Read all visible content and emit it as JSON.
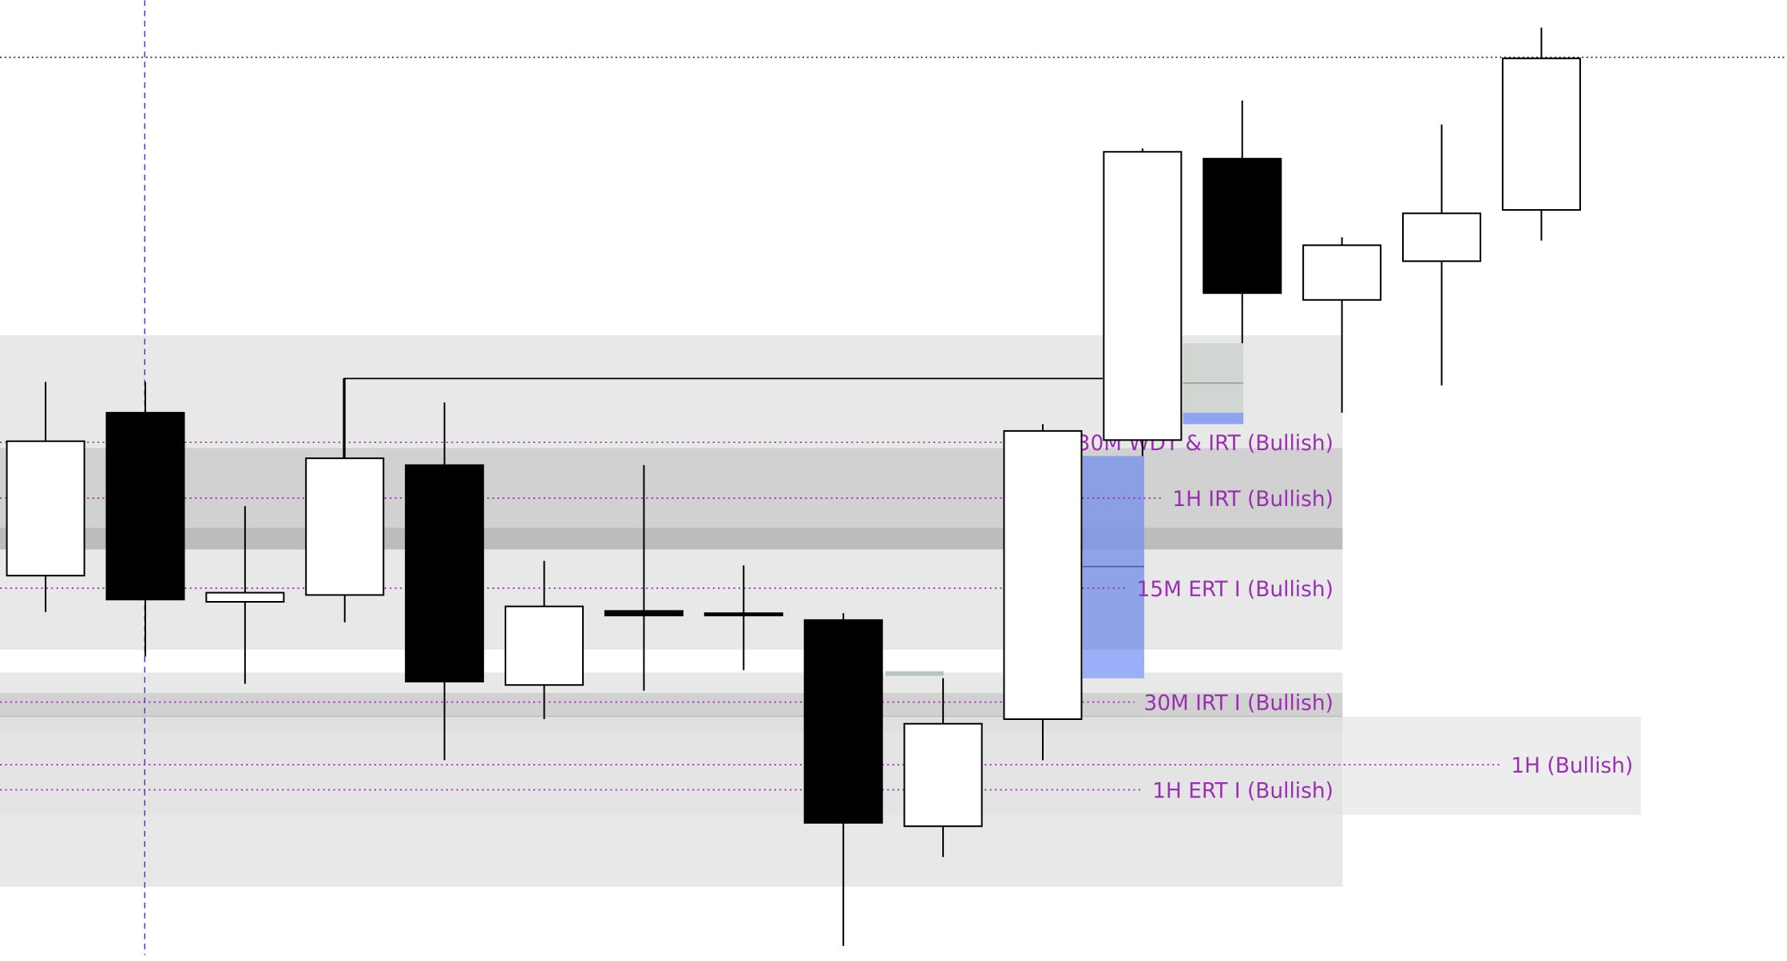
{
  "chart_data": {
    "type": "candlestick",
    "title": "",
    "xlabel": "",
    "ylabel": "",
    "price_units": "relative (no axis printed)",
    "ylim": [
      0,
      843
    ],
    "grid": false,
    "colors": {
      "bullish_body": "#ffffff",
      "bearish_body": "#000000",
      "outline": "#000000",
      "zone_light": "#e8e8e8",
      "zone_mid": "#d1d1d1",
      "zone_dark": "#bcbcbc",
      "fvg_blue": "#7f98e8",
      "label": "#9a2fb0",
      "crosshair": "#3b3bb0"
    },
    "candles": [
      {
        "open": 338,
        "high": 508,
        "low": 306,
        "close": 456
      },
      {
        "open": 481,
        "high": 508,
        "low": 267,
        "close": 317
      },
      {
        "open": 315,
        "high": 399,
        "low": 243,
        "close": 323
      },
      {
        "open": 321,
        "high": 511,
        "low": 297,
        "close": 441
      },
      {
        "open": 435,
        "high": 490,
        "low": 176,
        "close": 245
      },
      {
        "open": 242,
        "high": 351,
        "low": 212,
        "close": 311
      },
      {
        "open": 307,
        "high": 435,
        "low": 237,
        "close": 303
      },
      {
        "open": 305,
        "high": 347,
        "low": 255,
        "close": 303
      },
      {
        "open": 299,
        "high": 305,
        "low": 13,
        "close": 121
      },
      {
        "open": 118,
        "high": 248,
        "low": 91,
        "close": 208
      },
      {
        "open": 212,
        "high": 471,
        "low": 176,
        "close": 465
      },
      {
        "open": 457,
        "high": 713,
        "low": 443,
        "close": 710
      },
      {
        "open": 704,
        "high": 755,
        "low": 542,
        "close": 586
      },
      {
        "open": 580,
        "high": 635,
        "low": 481,
        "close": 628
      },
      {
        "open": 614,
        "high": 734,
        "low": 505,
        "close": 656
      },
      {
        "open": 659,
        "high": 819,
        "low": 632,
        "close": 792
      }
    ],
    "zones": [
      {
        "from_index": 0,
        "to_index": 13.5,
        "top": 549,
        "bottom": 273,
        "shade": "light"
      },
      {
        "from_index": 0,
        "to_index": 13.5,
        "top": 450,
        "bottom": 361,
        "shade": "mid"
      },
      {
        "from_index": 0,
        "to_index": 13.5,
        "top": 380,
        "bottom": 361,
        "shade": "dark"
      },
      {
        "from_index": 0,
        "to_index": 13.5,
        "top": 253,
        "bottom": 65,
        "shade": "light"
      },
      {
        "from_index": 0,
        "to_index": 13.5,
        "top": 235,
        "bottom": 128,
        "shade": "mid"
      },
      {
        "from_index": 0,
        "to_index": 13.5,
        "top": 215,
        "bottom": 201,
        "shade": "dark"
      },
      {
        "from_index": 0,
        "to_index": 16.5,
        "top": 214,
        "bottom": 128,
        "shade": "light"
      }
    ],
    "levels": [
      {
        "label": "30M WDT & IRT (Bullish)",
        "price": 455
      },
      {
        "label": "1H IRT (Bullish)",
        "price": 406
      },
      {
        "label": "15M ERT I (Bullish)",
        "price": 327
      },
      {
        "label": "30M IRT I (Bullish)",
        "price": 227
      },
      {
        "label": "1H (Bullish)",
        "price": 172
      },
      {
        "label": "1H ERT I (Bullish)",
        "price": 150
      }
    ],
    "top_reference_level": 793,
    "swing_high_line": {
      "from_index": 3,
      "to_index": 11,
      "price": 511
    },
    "crosshair_index": 1
  }
}
